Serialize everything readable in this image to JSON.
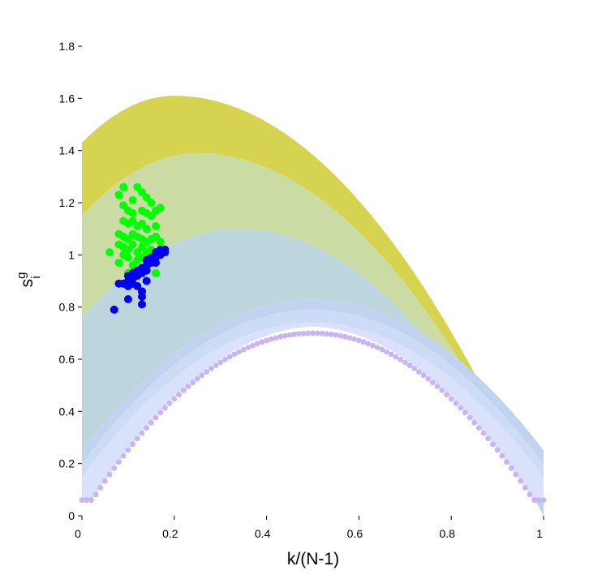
{
  "chart_data": {
    "type": "scatter",
    "title": "",
    "xlabel": "k/(N-1)",
    "ylabel": {
      "base": "s",
      "superscript": "g",
      "subscript": "i"
    },
    "xlim": [
      0,
      1
    ],
    "ylim": [
      0,
      1.8
    ],
    "x_ticks": [
      "0",
      "0.2",
      "0.4",
      "0.6",
      "0.8",
      "1"
    ],
    "y_ticks": [
      "0",
      "0.2",
      "0.4",
      "0.6",
      "0.8",
      "1",
      "1.2",
      "1.4",
      "1.6",
      "1.8"
    ],
    "grid": false,
    "legend": "none",
    "colors": {
      "band_outer": "#d6d350",
      "band_2": "#cadca4",
      "band_3": "#bdd5dc",
      "band_4": "#c2d3ef",
      "band_5": "#ccdbf6",
      "band_6": "#dae2fb",
      "baseline_dots": "#c9b5f2",
      "green_points": "#00ff00",
      "blue_points": "#0000ee"
    },
    "bands": [
      {
        "base": 0.0,
        "amp": 1.43,
        "peak_x": 0.2,
        "peak_y": 1.61
      },
      {
        "base": 0.0,
        "amp": 1.15,
        "peak_x": 0.25,
        "peak_y": 1.39
      },
      {
        "base": 0.0,
        "amp": 0.76,
        "peak_x": 0.34,
        "peak_y": 1.1
      },
      {
        "base": 0.25,
        "amp": 0.0,
        "peak_x": 0.5,
        "peak_y": 0.83
      },
      {
        "base": 0.2,
        "amp": 0.0,
        "peak_x": 0.5,
        "peak_y": 0.79
      },
      {
        "base": 0.15,
        "amp": 0.0,
        "peak_x": 0.5,
        "peak_y": 0.74
      }
    ],
    "baseline_curve": {
      "peak_x": 0.5,
      "peak_y": 0.7,
      "x_start": 0.0,
      "x_end": 1.0,
      "y_ends": 0.06
    },
    "series": [
      {
        "color": "green",
        "points": [
          [
            0.08,
            1.23
          ],
          [
            0.09,
            1.26
          ],
          [
            0.11,
            1.21
          ],
          [
            0.12,
            1.26
          ],
          [
            0.13,
            1.24
          ],
          [
            0.14,
            1.22
          ],
          [
            0.15,
            1.2
          ],
          [
            0.09,
            1.19
          ],
          [
            0.1,
            1.17
          ],
          [
            0.11,
            1.16
          ],
          [
            0.13,
            1.17
          ],
          [
            0.14,
            1.16
          ],
          [
            0.15,
            1.15
          ],
          [
            0.16,
            1.17
          ],
          [
            0.17,
            1.18
          ],
          [
            0.09,
            1.13
          ],
          [
            0.1,
            1.12
          ],
          [
            0.11,
            1.13
          ],
          [
            0.12,
            1.11
          ],
          [
            0.13,
            1.12
          ],
          [
            0.14,
            1.1
          ],
          [
            0.16,
            1.11
          ],
          [
            0.08,
            1.08
          ],
          [
            0.09,
            1.07
          ],
          [
            0.1,
            1.06
          ],
          [
            0.11,
            1.08
          ],
          [
            0.12,
            1.07
          ],
          [
            0.13,
            1.06
          ],
          [
            0.14,
            1.05
          ],
          [
            0.15,
            1.06
          ],
          [
            0.16,
            1.07
          ],
          [
            0.08,
            1.04
          ],
          [
            0.09,
            1.03
          ],
          [
            0.1,
            1.02
          ],
          [
            0.11,
            1.04
          ],
          [
            0.12,
            1.01
          ],
          [
            0.13,
            1.03
          ],
          [
            0.14,
            1.01
          ],
          [
            0.15,
            1.02
          ],
          [
            0.17,
            1.05
          ],
          [
            0.06,
            1.01
          ],
          [
            0.09,
            1.0
          ],
          [
            0.1,
            0.99
          ],
          [
            0.12,
            0.98
          ],
          [
            0.13,
            0.99
          ],
          [
            0.15,
            0.97
          ],
          [
            0.08,
            0.97
          ],
          [
            0.11,
            0.96
          ],
          [
            0.14,
            0.95
          ],
          [
            0.16,
            0.93
          ],
          [
            0.12,
            0.94
          ],
          [
            0.1,
            0.93
          ]
        ]
      },
      {
        "color": "blue",
        "points": [
          [
            0.08,
            0.89
          ],
          [
            0.09,
            0.89
          ],
          [
            0.1,
            0.9
          ],
          [
            0.1,
            0.92
          ],
          [
            0.11,
            0.91
          ],
          [
            0.11,
            0.93
          ],
          [
            0.12,
            0.92
          ],
          [
            0.12,
            0.94
          ],
          [
            0.13,
            0.95
          ],
          [
            0.13,
            0.93
          ],
          [
            0.14,
            0.96
          ],
          [
            0.14,
            0.94
          ],
          [
            0.15,
            0.97
          ],
          [
            0.15,
            0.98
          ],
          [
            0.16,
            0.99
          ],
          [
            0.16,
            0.97
          ],
          [
            0.17,
            1.0
          ],
          [
            0.17,
            1.02
          ],
          [
            0.18,
            1.02
          ],
          [
            0.18,
            1.01
          ],
          [
            0.15,
            0.99
          ],
          [
            0.16,
            1.01
          ],
          [
            0.14,
            0.98
          ],
          [
            0.1,
            0.88
          ],
          [
            0.12,
            0.88
          ],
          [
            0.13,
            0.86
          ],
          [
            0.14,
            0.9
          ],
          [
            0.13,
            0.84
          ],
          [
            0.1,
            0.83
          ],
          [
            0.13,
            0.81
          ],
          [
            0.07,
            0.79
          ],
          [
            0.11,
            0.89
          ]
        ]
      }
    ]
  }
}
